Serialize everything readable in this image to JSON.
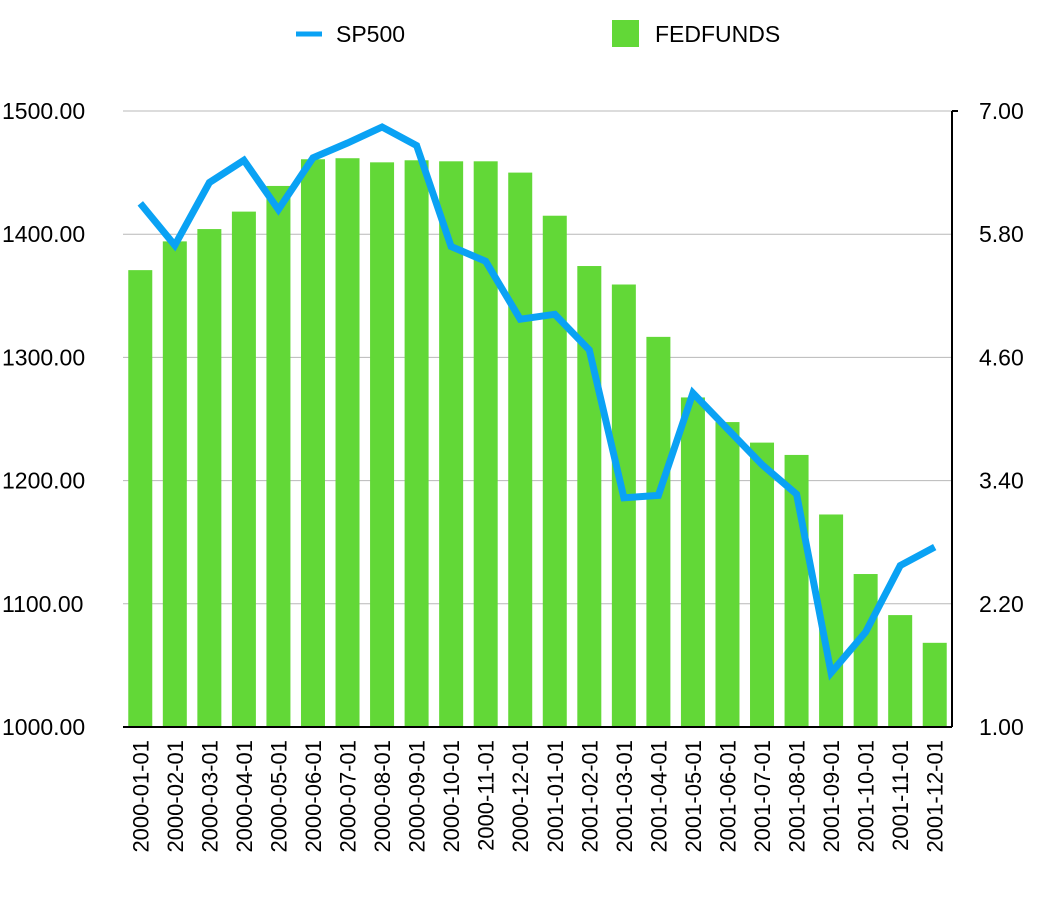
{
  "chart_data": {
    "type": "bar+line",
    "title": "",
    "categories": [
      "2000-01-01",
      "2000-02-01",
      "2000-03-01",
      "2000-04-01",
      "2000-05-01",
      "2000-06-01",
      "2000-07-01",
      "2000-08-01",
      "2000-09-01",
      "2000-10-01",
      "2000-11-01",
      "2000-12-01",
      "2001-01-01",
      "2001-02-01",
      "2001-03-01",
      "2001-04-01",
      "2001-05-01",
      "2001-06-01",
      "2001-07-01",
      "2001-08-01",
      "2001-09-01",
      "2001-10-01",
      "2001-11-01",
      "2001-12-01"
    ],
    "series": [
      {
        "name": "SP500",
        "type": "line",
        "axis": "left",
        "color": "#0AA2F4",
        "values": [
          1425,
          1391,
          1442,
          1460,
          1420,
          1462,
          1474,
          1487,
          1472,
          1390,
          1378,
          1331,
          1335,
          1306,
          1186,
          1188,
          1271,
          1242,
          1213,
          1189,
          1044,
          1077,
          1131,
          1146
        ]
      },
      {
        "name": "FEDFUNDS",
        "type": "bar",
        "axis": "right",
        "color": "#62D837",
        "values": [
          5.45,
          5.73,
          5.85,
          6.02,
          6.27,
          6.53,
          6.54,
          6.5,
          6.52,
          6.51,
          6.51,
          6.4,
          5.98,
          5.49,
          5.31,
          4.8,
          4.21,
          3.97,
          3.77,
          3.65,
          3.07,
          2.49,
          2.09,
          1.82
        ]
      }
    ],
    "left_axis": {
      "min": 1000,
      "max": 1500,
      "ticks": [
        "1500.00",
        "1400.00",
        "1300.00",
        "1200.00",
        "1100.00",
        "1000.00"
      ]
    },
    "right_axis": {
      "min": 1.0,
      "max": 7.0,
      "ticks": [
        "7.00",
        "5.80",
        "4.60",
        "3.40",
        "2.20",
        "1.00"
      ]
    },
    "legend": {
      "position": "top",
      "items": [
        "SP500",
        "FEDFUNDS"
      ]
    },
    "grid": true
  }
}
